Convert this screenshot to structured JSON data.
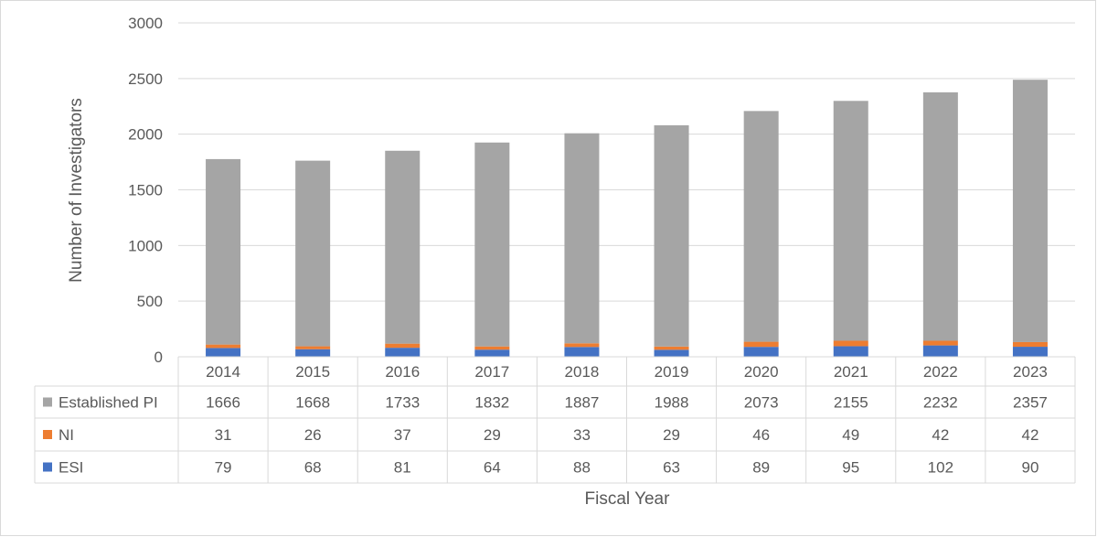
{
  "chart_data": {
    "type": "bar",
    "stacked": true,
    "categories": [
      "2014",
      "2015",
      "2016",
      "2017",
      "2018",
      "2019",
      "2020",
      "2021",
      "2022",
      "2023"
    ],
    "series": [
      {
        "name": "Established PI",
        "color": "#a5a5a5",
        "values": [
          1666,
          1668,
          1733,
          1832,
          1887,
          1988,
          2073,
          2155,
          2232,
          2357
        ]
      },
      {
        "name": "NI",
        "color": "#ed7d31",
        "values": [
          31,
          26,
          37,
          29,
          33,
          29,
          46,
          49,
          42,
          42
        ]
      },
      {
        "name": "ESI",
        "color": "#4472c4",
        "values": [
          79,
          68,
          81,
          64,
          88,
          63,
          89,
          95,
          102,
          90
        ]
      }
    ],
    "stack_order": [
      "ESI",
      "NI",
      "Established PI"
    ],
    "xlabel": "Fiscal Year",
    "ylabel": "Number of Investigators",
    "ylim": [
      0,
      3000
    ],
    "yticks": [
      0,
      500,
      1000,
      1500,
      2000,
      2500,
      3000
    ],
    "grid": true,
    "data_table": true
  }
}
